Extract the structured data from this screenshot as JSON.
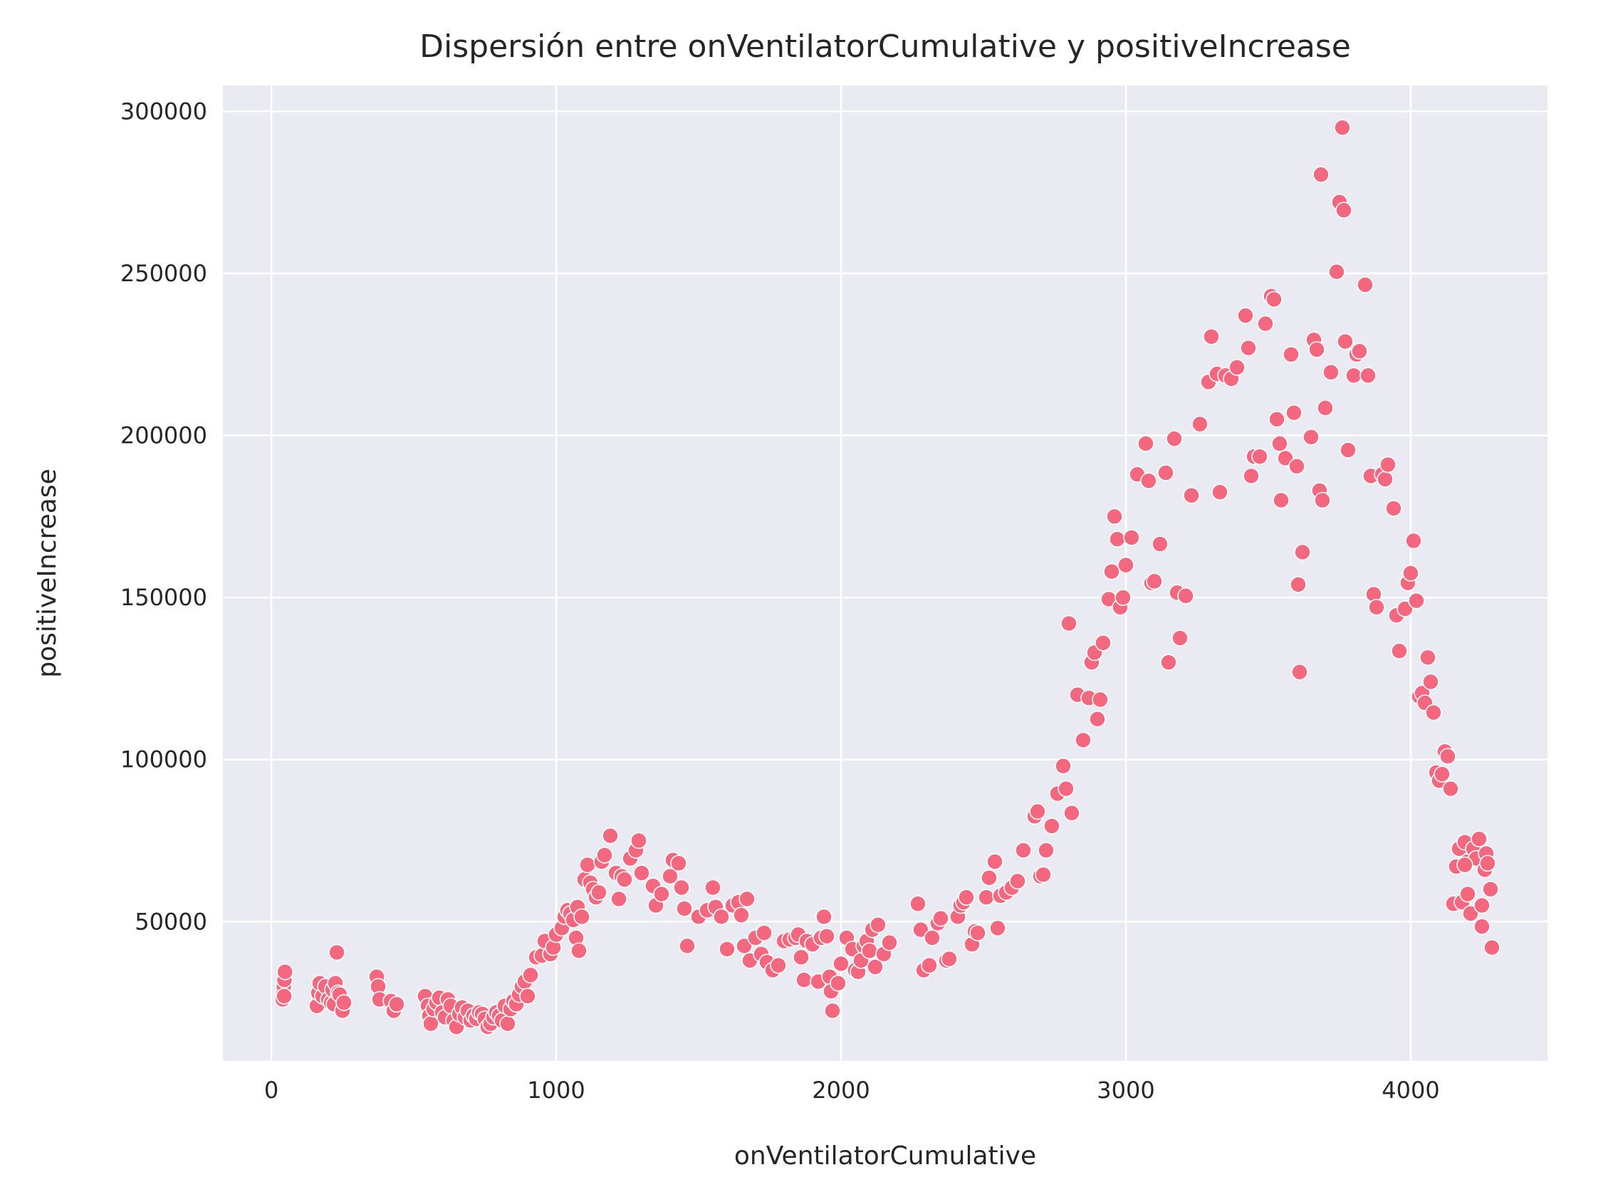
{
  "chart_data": {
    "type": "scatter",
    "title": "Dispersión entre onVentilatorCumulative y positiveIncrease",
    "xlabel": "onVentilatorCumulative",
    "ylabel": "positiveIncrease",
    "xlim": [
      -170,
      4480
    ],
    "ylim": [
      7000,
      308000
    ],
    "xticks": [
      0,
      1000,
      2000,
      3000,
      4000
    ],
    "xtick_labels": [
      "0",
      "1000",
      "2000",
      "3000",
      "4000"
    ],
    "yticks": [
      50000,
      100000,
      150000,
      200000,
      250000,
      300000
    ],
    "ytick_labels": [
      "50000",
      "100000",
      "150000",
      "200000",
      "250000",
      "300000"
    ],
    "grid": true,
    "colors": {
      "point": "#f4687f",
      "background": "#eaeaf2",
      "grid": "#ffffff"
    },
    "points": [
      [
        40,
        26000
      ],
      [
        42,
        28000
      ],
      [
        44,
        30000
      ],
      [
        46,
        32000
      ],
      [
        48,
        34500
      ],
      [
        45,
        27000
      ],
      [
        160,
        24000
      ],
      [
        165,
        28000
      ],
      [
        170,
        31000
      ],
      [
        180,
        27000
      ],
      [
        190,
        30000
      ],
      [
        200,
        26000
      ],
      [
        210,
        25000
      ],
      [
        215,
        29000
      ],
      [
        220,
        24500
      ],
      [
        225,
        31000
      ],
      [
        230,
        40500
      ],
      [
        235,
        28000
      ],
      [
        240,
        27500
      ],
      [
        250,
        22500
      ],
      [
        255,
        25000
      ],
      [
        370,
        33000
      ],
      [
        375,
        30000
      ],
      [
        380,
        26000
      ],
      [
        420,
        25500
      ],
      [
        430,
        22500
      ],
      [
        440,
        24500
      ],
      [
        540,
        27000
      ],
      [
        550,
        24000
      ],
      [
        555,
        21000
      ],
      [
        560,
        18500
      ],
      [
        570,
        23000
      ],
      [
        580,
        25000
      ],
      [
        590,
        26500
      ],
      [
        600,
        22000
      ],
      [
        610,
        20500
      ],
      [
        620,
        26000
      ],
      [
        630,
        24000
      ],
      [
        640,
        19500
      ],
      [
        650,
        17500
      ],
      [
        660,
        21500
      ],
      [
        670,
        23500
      ],
      [
        680,
        20500
      ],
      [
        690,
        22500
      ],
      [
        700,
        19500
      ],
      [
        710,
        21000
      ],
      [
        720,
        20000
      ],
      [
        730,
        22000
      ],
      [
        740,
        21500
      ],
      [
        750,
        20000
      ],
      [
        760,
        17500
      ],
      [
        770,
        18500
      ],
      [
        780,
        20500
      ],
      [
        790,
        22000
      ],
      [
        800,
        21000
      ],
      [
        810,
        19500
      ],
      [
        820,
        24000
      ],
      [
        830,
        18500
      ],
      [
        840,
        23000
      ],
      [
        850,
        25500
      ],
      [
        860,
        24500
      ],
      [
        870,
        27500
      ],
      [
        880,
        30000
      ],
      [
        890,
        31500
      ],
      [
        900,
        27000
      ],
      [
        910,
        33500
      ],
      [
        930,
        39000
      ],
      [
        950,
        39500
      ],
      [
        960,
        44000
      ],
      [
        980,
        40000
      ],
      [
        990,
        42000
      ],
      [
        1000,
        46000
      ],
      [
        1020,
        48000
      ],
      [
        1030,
        51500
      ],
      [
        1040,
        53500
      ],
      [
        1050,
        52500
      ],
      [
        1060,
        50500
      ],
      [
        1070,
        45000
      ],
      [
        1075,
        54500
      ],
      [
        1080,
        41000
      ],
      [
        1090,
        51500
      ],
      [
        1100,
        63000
      ],
      [
        1110,
        67500
      ],
      [
        1120,
        62000
      ],
      [
        1130,
        60000
      ],
      [
        1140,
        57500
      ],
      [
        1150,
        59000
      ],
      [
        1160,
        68500
      ],
      [
        1170,
        70500
      ],
      [
        1190,
        76500
      ],
      [
        1210,
        65000
      ],
      [
        1220,
        57000
      ],
      [
        1230,
        64000
      ],
      [
        1240,
        63000
      ],
      [
        1260,
        69500
      ],
      [
        1280,
        72000
      ],
      [
        1290,
        75000
      ],
      [
        1300,
        65000
      ],
      [
        1340,
        61000
      ],
      [
        1350,
        55000
      ],
      [
        1370,
        58500
      ],
      [
        1400,
        64000
      ],
      [
        1410,
        69000
      ],
      [
        1430,
        68000
      ],
      [
        1440,
        60500
      ],
      [
        1450,
        54000
      ],
      [
        1460,
        42500
      ],
      [
        1500,
        51500
      ],
      [
        1530,
        53500
      ],
      [
        1550,
        60500
      ],
      [
        1560,
        54500
      ],
      [
        1580,
        51500
      ],
      [
        1600,
        41500
      ],
      [
        1620,
        55000
      ],
      [
        1640,
        56000
      ],
      [
        1650,
        52000
      ],
      [
        1660,
        42500
      ],
      [
        1670,
        57000
      ],
      [
        1680,
        38000
      ],
      [
        1700,
        45000
      ],
      [
        1720,
        40000
      ],
      [
        1730,
        46500
      ],
      [
        1740,
        37500
      ],
      [
        1760,
        35000
      ],
      [
        1780,
        36500
      ],
      [
        1800,
        44000
      ],
      [
        1820,
        44500
      ],
      [
        1840,
        45000
      ],
      [
        1850,
        46000
      ],
      [
        1860,
        39000
      ],
      [
        1870,
        32000
      ],
      [
        1880,
        44000
      ],
      [
        1900,
        43000
      ],
      [
        1920,
        31500
      ],
      [
        1930,
        45000
      ],
      [
        1940,
        51500
      ],
      [
        1950,
        45500
      ],
      [
        1960,
        33000
      ],
      [
        1965,
        28500
      ],
      [
        1970,
        22500
      ],
      [
        1990,
        31000
      ],
      [
        2000,
        37000
      ],
      [
        2020,
        45000
      ],
      [
        2040,
        41500
      ],
      [
        2050,
        35000
      ],
      [
        2060,
        34500
      ],
      [
        2070,
        38000
      ],
      [
        2080,
        42500
      ],
      [
        2090,
        44000
      ],
      [
        2100,
        41000
      ],
      [
        2110,
        47500
      ],
      [
        2120,
        36000
      ],
      [
        2130,
        49000
      ],
      [
        2150,
        40000
      ],
      [
        2170,
        43500
      ],
      [
        2270,
        55500
      ],
      [
        2280,
        47500
      ],
      [
        2290,
        35000
      ],
      [
        2310,
        36500
      ],
      [
        2320,
        45000
      ],
      [
        2340,
        49500
      ],
      [
        2350,
        51000
      ],
      [
        2370,
        38000
      ],
      [
        2380,
        38500
      ],
      [
        2410,
        51500
      ],
      [
        2420,
        55000
      ],
      [
        2430,
        56000
      ],
      [
        2440,
        57500
      ],
      [
        2460,
        43000
      ],
      [
        2470,
        47000
      ],
      [
        2480,
        46500
      ],
      [
        2510,
        57500
      ],
      [
        2520,
        63500
      ],
      [
        2540,
        68500
      ],
      [
        2550,
        48000
      ],
      [
        2560,
        58000
      ],
      [
        2580,
        59000
      ],
      [
        2600,
        60500
      ],
      [
        2620,
        62500
      ],
      [
        2640,
        72000
      ],
      [
        2680,
        82500
      ],
      [
        2690,
        84000
      ],
      [
        2700,
        64000
      ],
      [
        2710,
        64500
      ],
      [
        2720,
        72000
      ],
      [
        2740,
        79500
      ],
      [
        2760,
        89500
      ],
      [
        2780,
        98000
      ],
      [
        2790,
        91000
      ],
      [
        2800,
        142000
      ],
      [
        2810,
        83500
      ],
      [
        2830,
        120000
      ],
      [
        2850,
        106000
      ],
      [
        2870,
        119000
      ],
      [
        2880,
        130000
      ],
      [
        2890,
        133000
      ],
      [
        2900,
        112500
      ],
      [
        2910,
        118500
      ],
      [
        2920,
        136000
      ],
      [
        2940,
        149500
      ],
      [
        2950,
        158000
      ],
      [
        2960,
        175000
      ],
      [
        2970,
        168000
      ],
      [
        2980,
        147000
      ],
      [
        2990,
        150000
      ],
      [
        3000,
        160000
      ],
      [
        3020,
        168500
      ],
      [
        3040,
        188000
      ],
      [
        3070,
        197500
      ],
      [
        3080,
        186000
      ],
      [
        3090,
        154500
      ],
      [
        3100,
        155000
      ],
      [
        3120,
        166500
      ],
      [
        3140,
        188500
      ],
      [
        3150,
        130000
      ],
      [
        3170,
        199000
      ],
      [
        3180,
        151500
      ],
      [
        3190,
        137500
      ],
      [
        3210,
        150500
      ],
      [
        3230,
        181500
      ],
      [
        3260,
        203500
      ],
      [
        3290,
        216500
      ],
      [
        3300,
        230500
      ],
      [
        3320,
        219000
      ],
      [
        3330,
        182500
      ],
      [
        3350,
        218500
      ],
      [
        3370,
        217500
      ],
      [
        3390,
        221000
      ],
      [
        3420,
        237000
      ],
      [
        3430,
        227000
      ],
      [
        3440,
        187500
      ],
      [
        3450,
        193500
      ],
      [
        3470,
        193500
      ],
      [
        3490,
        234500
      ],
      [
        3510,
        243000
      ],
      [
        3520,
        242000
      ],
      [
        3530,
        205000
      ],
      [
        3540,
        197500
      ],
      [
        3545,
        180000
      ],
      [
        3560,
        193000
      ],
      [
        3580,
        225000
      ],
      [
        3590,
        207000
      ],
      [
        3600,
        190500
      ],
      [
        3605,
        154000
      ],
      [
        3610,
        127000
      ],
      [
        3620,
        164000
      ],
      [
        3650,
        199500
      ],
      [
        3660,
        229500
      ],
      [
        3670,
        226500
      ],
      [
        3680,
        183000
      ],
      [
        3685,
        280500
      ],
      [
        3690,
        180000
      ],
      [
        3700,
        208500
      ],
      [
        3720,
        219500
      ],
      [
        3740,
        250500
      ],
      [
        3750,
        272000
      ],
      [
        3760,
        295000
      ],
      [
        3765,
        269500
      ],
      [
        3770,
        229000
      ],
      [
        3780,
        195500
      ],
      [
        3800,
        218500
      ],
      [
        3810,
        225000
      ],
      [
        3820,
        226000
      ],
      [
        3840,
        246500
      ],
      [
        3850,
        218500
      ],
      [
        3860,
        187500
      ],
      [
        3870,
        151000
      ],
      [
        3880,
        147000
      ],
      [
        3900,
        188000
      ],
      [
        3910,
        186500
      ],
      [
        3920,
        191000
      ],
      [
        3940,
        177500
      ],
      [
        3950,
        144500
      ],
      [
        3960,
        133500
      ],
      [
        3980,
        146500
      ],
      [
        3990,
        154500
      ],
      [
        4000,
        157500
      ],
      [
        4010,
        167500
      ],
      [
        4020,
        149000
      ],
      [
        4030,
        119500
      ],
      [
        4040,
        120500
      ],
      [
        4050,
        117500
      ],
      [
        4060,
        131500
      ],
      [
        4070,
        124000
      ],
      [
        4080,
        114500
      ],
      [
        4090,
        96000
      ],
      [
        4100,
        93500
      ],
      [
        4110,
        95500
      ],
      [
        4120,
        102500
      ],
      [
        4130,
        101000
      ],
      [
        4140,
        91000
      ],
      [
        4150,
        55500
      ],
      [
        4160,
        67000
      ],
      [
        4170,
        72500
      ],
      [
        4180,
        56000
      ],
      [
        4190,
        74500
      ],
      [
        4200,
        68500
      ],
      [
        4210,
        52500
      ],
      [
        4220,
        72500
      ],
      [
        4230,
        69500
      ],
      [
        4240,
        75500
      ],
      [
        4250,
        48500
      ],
      [
        4260,
        66000
      ],
      [
        4265,
        71000
      ],
      [
        4270,
        68000
      ],
      [
        4280,
        60000
      ],
      [
        4285,
        42000
      ],
      [
        4250,
        55000
      ],
      [
        4200,
        58500
      ],
      [
        4190,
        67500
      ]
    ]
  }
}
